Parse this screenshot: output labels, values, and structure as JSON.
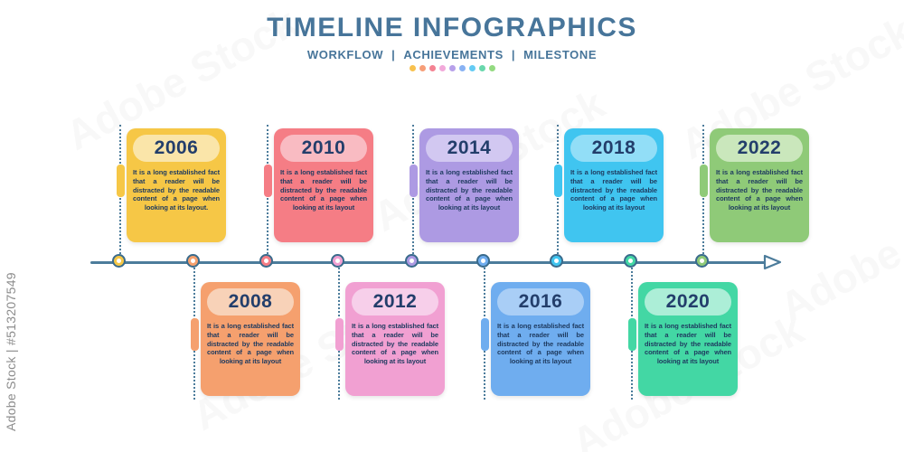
{
  "header": {
    "title": "TIMELINE INFOGRAPHICS",
    "subtitle_items": [
      "WORKFLOW",
      "ACHIEVEMENTS",
      "MILESTONE"
    ],
    "separator": "|",
    "dot_colors": [
      "#F8C14E",
      "#F79E78",
      "#F48292",
      "#F2A9DA",
      "#B7A0EA",
      "#88B2F3",
      "#64CBF4",
      "#69D7AC",
      "#93DA80"
    ]
  },
  "timeline": {
    "line_color": "#4C7C9B",
    "items": [
      {
        "year": "2006",
        "side": "top",
        "color": "#F6C746",
        "pill_color": "#FAE5A9",
        "text": "It is a long established fact that a reader will be distracted by the readable content of a page when looking at its layout."
      },
      {
        "year": "2008",
        "side": "bottom",
        "color": "#F5A06E",
        "pill_color": "#F8D2B8",
        "text": "It is a long established fact that a reader will be distracted by the readable content of a page when looking at its layout"
      },
      {
        "year": "2010",
        "side": "top",
        "color": "#F57D85",
        "pill_color": "#F9BBC2",
        "text": "It is a long established fact that a reader will be distracted by the readable content of a page when looking at its layout"
      },
      {
        "year": "2012",
        "side": "bottom",
        "color": "#F1A0D2",
        "pill_color": "#F7CFEA",
        "text": "It is a long established fact that a reader will be distracted by the readable content of a page when looking at its layout"
      },
      {
        "year": "2014",
        "side": "top",
        "color": "#AD9AE3",
        "pill_color": "#D2C8F1",
        "text": "It is a long established fact that a reader will be distracted by the readable content of a page when looking at its layout"
      },
      {
        "year": "2016",
        "side": "bottom",
        "color": "#6FADEF",
        "pill_color": "#A9CEF6",
        "text": "It is a long established fact that a reader will be distracted by the readable content of a page when looking at its layout"
      },
      {
        "year": "2018",
        "side": "top",
        "color": "#40C5F0",
        "pill_color": "#92DEF7",
        "text": "It is a long established fact that a reader will be distracted by the readable content of a page when looking at its layout"
      },
      {
        "year": "2020",
        "side": "bottom",
        "color": "#43D7A4",
        "pill_color": "#ACEED7",
        "text": "It is a long established fact that a reader will be distracted by the readable content of a page when looking at its layout"
      },
      {
        "year": "2022",
        "side": "top",
        "color": "#8FCA78",
        "pill_color": "#CAE7BC",
        "text": "It is a long established fact that a reader will be distracted by the readable content of a page when looking at its layout"
      }
    ]
  },
  "watermark": {
    "side_label": "Adobe Stock | #513207549",
    "diagonal_label": "Adobe Stock"
  }
}
